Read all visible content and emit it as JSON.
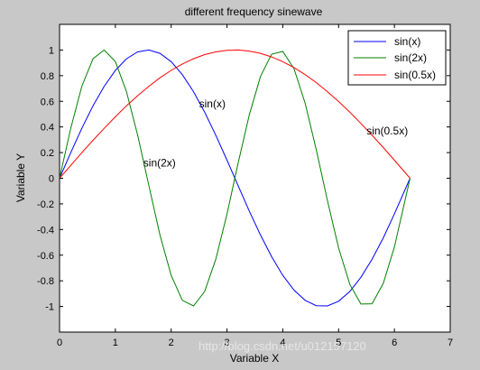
{
  "chart_data": {
    "type": "line",
    "title": "different frequency sinewave",
    "xlabel": "Variable X",
    "ylabel": "Variable Y",
    "xlim": [
      0,
      7
    ],
    "ylim": [
      -1.2,
      1.2
    ],
    "x_ticks": [
      "0",
      "1",
      "2",
      "3",
      "4",
      "5",
      "6",
      "7"
    ],
    "y_ticks": [
      "1",
      "0.8",
      "0.6",
      "0.4",
      "0.2",
      "0",
      "-0.2",
      "-0.4",
      "-0.6",
      "-0.8",
      "-1"
    ],
    "grid": false,
    "legend_position": "top-right",
    "series": [
      {
        "name": "sin(x)",
        "color": "#0000ff",
        "x": [
          0,
          0.2,
          0.4,
          0.6,
          0.8,
          1.0,
          1.2,
          1.4,
          1.6,
          1.8,
          2.0,
          2.2,
          2.4,
          2.6,
          2.8,
          3.0,
          3.2,
          3.4,
          3.6,
          3.8,
          4.0,
          4.2,
          4.4,
          4.6,
          4.8,
          5.0,
          5.2,
          5.4,
          5.6,
          5.8,
          6.0,
          6.28
        ],
        "y": [
          0,
          0.199,
          0.389,
          0.565,
          0.717,
          0.841,
          0.932,
          0.985,
          1.0,
          0.974,
          0.909,
          0.808,
          0.675,
          0.516,
          0.335,
          0.141,
          -0.058,
          -0.256,
          -0.443,
          -0.612,
          -0.757,
          -0.872,
          -0.952,
          -0.994,
          -0.996,
          -0.959,
          -0.883,
          -0.773,
          -0.631,
          -0.465,
          -0.279,
          0
        ]
      },
      {
        "name": "sin(2x)",
        "color": "#008000",
        "x": [
          0,
          0.2,
          0.4,
          0.6,
          0.8,
          1.0,
          1.2,
          1.4,
          1.6,
          1.8,
          2.0,
          2.2,
          2.4,
          2.6,
          2.8,
          3.0,
          3.2,
          3.4,
          3.6,
          3.8,
          4.0,
          4.2,
          4.4,
          4.6,
          4.8,
          5.0,
          5.2,
          5.4,
          5.6,
          5.8,
          6.0,
          6.28
        ],
        "y": [
          0,
          0.389,
          0.717,
          0.932,
          1.0,
          0.909,
          0.675,
          0.335,
          -0.058,
          -0.443,
          -0.757,
          -0.952,
          -0.996,
          -0.883,
          -0.631,
          -0.279,
          0.117,
          0.494,
          0.794,
          0.968,
          0.989,
          0.855,
          0.585,
          0.223,
          -0.174,
          -0.544,
          -0.828,
          -0.981,
          -0.979,
          -0.82,
          -0.537,
          0
        ]
      },
      {
        "name": "sin(0.5x)",
        "color": "#ff0000",
        "x": [
          0,
          0.2,
          0.4,
          0.6,
          0.8,
          1.0,
          1.2,
          1.4,
          1.6,
          1.8,
          2.0,
          2.2,
          2.4,
          2.6,
          2.8,
          3.0,
          3.2,
          3.4,
          3.6,
          3.8,
          4.0,
          4.2,
          4.4,
          4.6,
          4.8,
          5.0,
          5.2,
          5.4,
          5.6,
          5.8,
          6.0,
          6.28
        ],
        "y": [
          0,
          0.1,
          0.199,
          0.296,
          0.389,
          0.479,
          0.565,
          0.644,
          0.717,
          0.783,
          0.841,
          0.891,
          0.932,
          0.964,
          0.985,
          0.997,
          1.0,
          0.992,
          0.974,
          0.946,
          0.909,
          0.863,
          0.808,
          0.746,
          0.675,
          0.598,
          0.516,
          0.427,
          0.335,
          0.239,
          0.141,
          0
        ]
      }
    ],
    "annotations": [
      {
        "text": "sin(x)",
        "x": 2.5,
        "y": 0.58
      },
      {
        "text": "sin(2x)",
        "x": 1.5,
        "y": 0.12
      },
      {
        "text": "sin(0.5x)",
        "x": 5.5,
        "y": 0.37
      }
    ],
    "watermark": "http://blog.csdn.net/u012157120"
  }
}
